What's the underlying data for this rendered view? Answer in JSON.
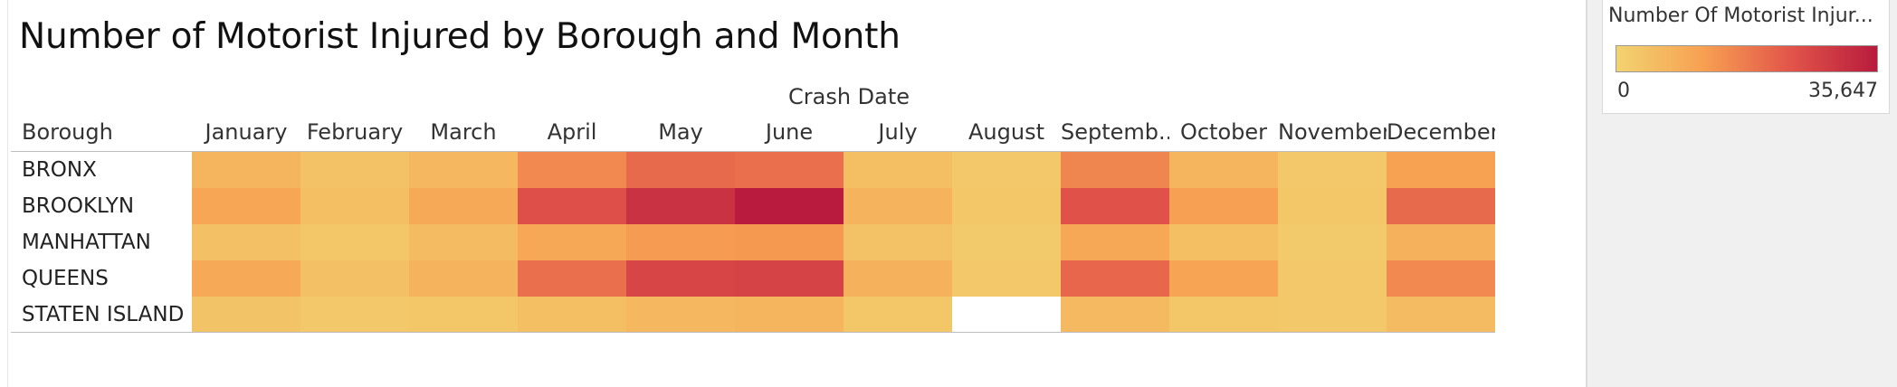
{
  "title": "Number of Motorist Injured by Borough and Month",
  "legend": {
    "title": "Number Of Motorist Injur...",
    "min_label": "0",
    "max_label": "35,647",
    "colors": [
      "#f2d370",
      "#f7a052",
      "#e2554a",
      "#b81b3d"
    ]
  },
  "chart_data": {
    "type": "heatmap",
    "title": "Number of Motorist Injured by Borough and Month",
    "column_field": "Crash Date",
    "row_field": "Borough",
    "columns": [
      "January",
      "February",
      "March",
      "April",
      "May",
      "June",
      "July",
      "August",
      "Septemb..",
      "October",
      "November",
      "December"
    ],
    "rows": [
      "BRONX",
      "BROOKLYN",
      "MANHATTAN",
      "QUEENS",
      "STATEN ISLAND"
    ],
    "values": [
      [
        7000,
        4000,
        6500,
        15500,
        20500,
        19500,
        5000,
        2500,
        16000,
        7000,
        2500,
        11500
      ],
      [
        10500,
        5000,
        9500,
        25000,
        31000,
        35647,
        7500,
        3000,
        24500,
        12000,
        3000,
        20500
      ],
      [
        4500,
        3000,
        5500,
        10000,
        12500,
        13000,
        4000,
        2000,
        10000,
        5000,
        2000,
        8000
      ],
      [
        9500,
        4500,
        7500,
        19500,
        27000,
        27500,
        8000,
        2500,
        21000,
        11000,
        2500,
        15500
      ],
      [
        3500,
        2500,
        3000,
        5000,
        6500,
        7000,
        3000,
        null,
        6000,
        3000,
        2500,
        5500
      ]
    ],
    "color_range": [
      0,
      35647
    ]
  }
}
